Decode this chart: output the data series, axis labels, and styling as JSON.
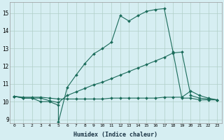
{
  "xlabel": "Humidex (Indice chaleur)",
  "xlim": [
    -0.5,
    23.5
  ],
  "ylim": [
    8.8,
    15.6
  ],
  "yticks": [
    9,
    10,
    11,
    12,
    13,
    14,
    15
  ],
  "xticks": [
    0,
    1,
    2,
    3,
    4,
    5,
    6,
    7,
    8,
    9,
    10,
    11,
    12,
    13,
    14,
    15,
    16,
    17,
    18,
    19,
    20,
    21,
    22,
    23
  ],
  "bg_color": "#d6eef2",
  "grid_color": "#b0cfc8",
  "line_color": "#1a6b5a",
  "line1_x": [
    0,
    1,
    2,
    3,
    4,
    5,
    5,
    6,
    7,
    8,
    9,
    10,
    11,
    12,
    13,
    14,
    15,
    16,
    17,
    18,
    19,
    20,
    21,
    22,
    23
  ],
  "line1_y": [
    10.3,
    10.2,
    10.2,
    10.0,
    10.0,
    9.8,
    8.85,
    10.8,
    11.5,
    12.15,
    12.7,
    13.0,
    13.35,
    14.85,
    14.55,
    14.85,
    15.1,
    15.2,
    15.25,
    12.8,
    10.2,
    10.2,
    10.1,
    10.1,
    10.1
  ],
  "line2_x": [
    0,
    1,
    2,
    3,
    4,
    5,
    6,
    7,
    8,
    9,
    10,
    11,
    12,
    13,
    14,
    15,
    16,
    17,
    18,
    19,
    20,
    21,
    22,
    23
  ],
  "line2_y": [
    10.3,
    10.2,
    10.2,
    10.2,
    10.05,
    9.95,
    10.35,
    10.55,
    10.75,
    10.95,
    11.1,
    11.3,
    11.5,
    11.7,
    11.9,
    12.1,
    12.3,
    12.5,
    12.75,
    12.8,
    10.35,
    10.2,
    10.15,
    10.1
  ],
  "line3_x": [
    0,
    1,
    2,
    3,
    4,
    5,
    6,
    7,
    8,
    9,
    10,
    11,
    12,
    13,
    14,
    15,
    16,
    17,
    18,
    19,
    20,
    21,
    22,
    23
  ],
  "line3_y": [
    10.3,
    10.25,
    10.25,
    10.25,
    10.2,
    10.15,
    10.15,
    10.15,
    10.15,
    10.15,
    10.15,
    10.2,
    10.2,
    10.2,
    10.2,
    10.2,
    10.2,
    10.25,
    10.25,
    10.25,
    10.6,
    10.35,
    10.2,
    10.1
  ]
}
